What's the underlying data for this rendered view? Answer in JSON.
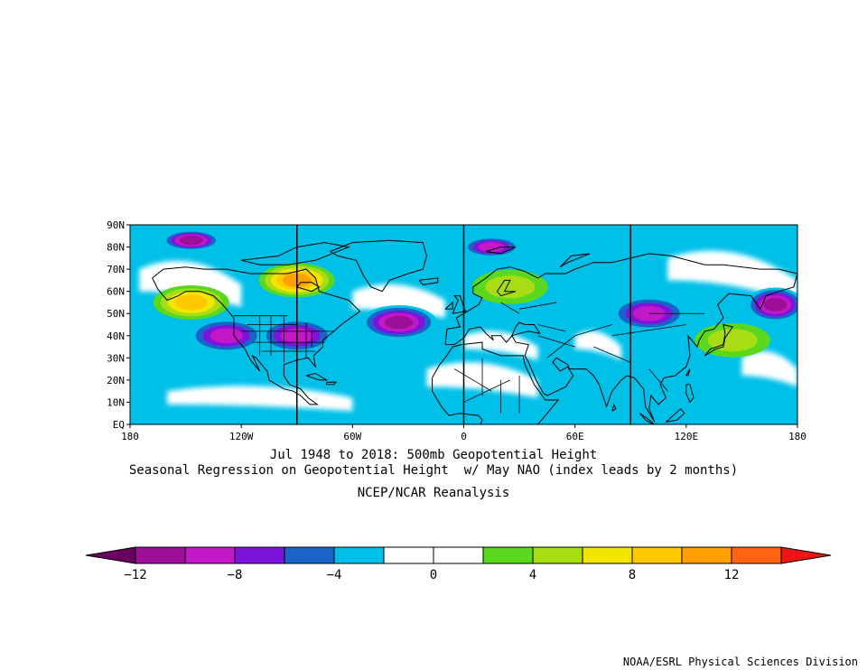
{
  "map": {
    "projection": "cylindrical equidistant",
    "lon_range": [
      -180,
      180
    ],
    "lat_range": [
      0,
      90
    ],
    "lat_ticks": [
      "90N",
      "80N",
      "70N",
      "60N",
      "50N",
      "40N",
      "30N",
      "20N",
      "10N",
      "EQ"
    ],
    "lon_ticks": [
      "180",
      "120W",
      "60W",
      "0",
      "60E",
      "120E",
      "180"
    ],
    "field": "500mb geopotential height regression on May NAO",
    "background_color": "#00c0e8",
    "anomalies": [
      {
        "label": "polar negative, Pacific sector",
        "lon": -147,
        "lat": 83,
        "value": -10
      },
      {
        "label": "polar negative, Greenland to Siberia",
        "lon": 15,
        "lat": 80,
        "value": -8
      },
      {
        "label": "Canada positive",
        "lon": -90,
        "lat": 65,
        "value": 10
      },
      {
        "label": "Gulf of Alaska positive",
        "lon": -147,
        "lat": 55,
        "value": 8
      },
      {
        "label": "western Atlantic negative",
        "lon": -35,
        "lat": 46,
        "value": -10
      },
      {
        "label": "eastern US negative",
        "lon": -90,
        "lat": 40,
        "value": -8
      },
      {
        "label": "NE Pacific negative",
        "lon": -128,
        "lat": 40,
        "value": -8
      },
      {
        "label": "Scandinavia positive",
        "lon": 25,
        "lat": 62,
        "value": 4
      },
      {
        "label": "central Asia negative",
        "lon": 100,
        "lat": 50,
        "value": -8
      },
      {
        "label": "Kamchatka negative",
        "lon": 168,
        "lat": 54,
        "value": -10
      },
      {
        "label": "Japan positive",
        "lon": 145,
        "lat": 38,
        "value": 4
      }
    ]
  },
  "caption": {
    "line1": "Jul 1948 to 2018: 500mb Geopotential Height",
    "line2": "Seasonal Regression on Geopotential Height  w/ May NAO (index leads by 2 months)",
    "line3": "NCEP/NCAR Reanalysis"
  },
  "colorbar": {
    "colors": [
      "#6a0060",
      "#9c0f96",
      "#c318c8",
      "#7e14dc",
      "#1a63c8",
      "#00c0e8",
      "#ffffff",
      "#ffffff",
      "#5ad81e",
      "#a8dc14",
      "#f0e600",
      "#ffc800",
      "#ffa000",
      "#ff6414",
      "#f01414"
    ],
    "labels": [
      "−12",
      "−8",
      "−4",
      "0",
      "4",
      "8",
      "12"
    ]
  },
  "credit": "NOAA/ESRL Physical Sciences Division"
}
